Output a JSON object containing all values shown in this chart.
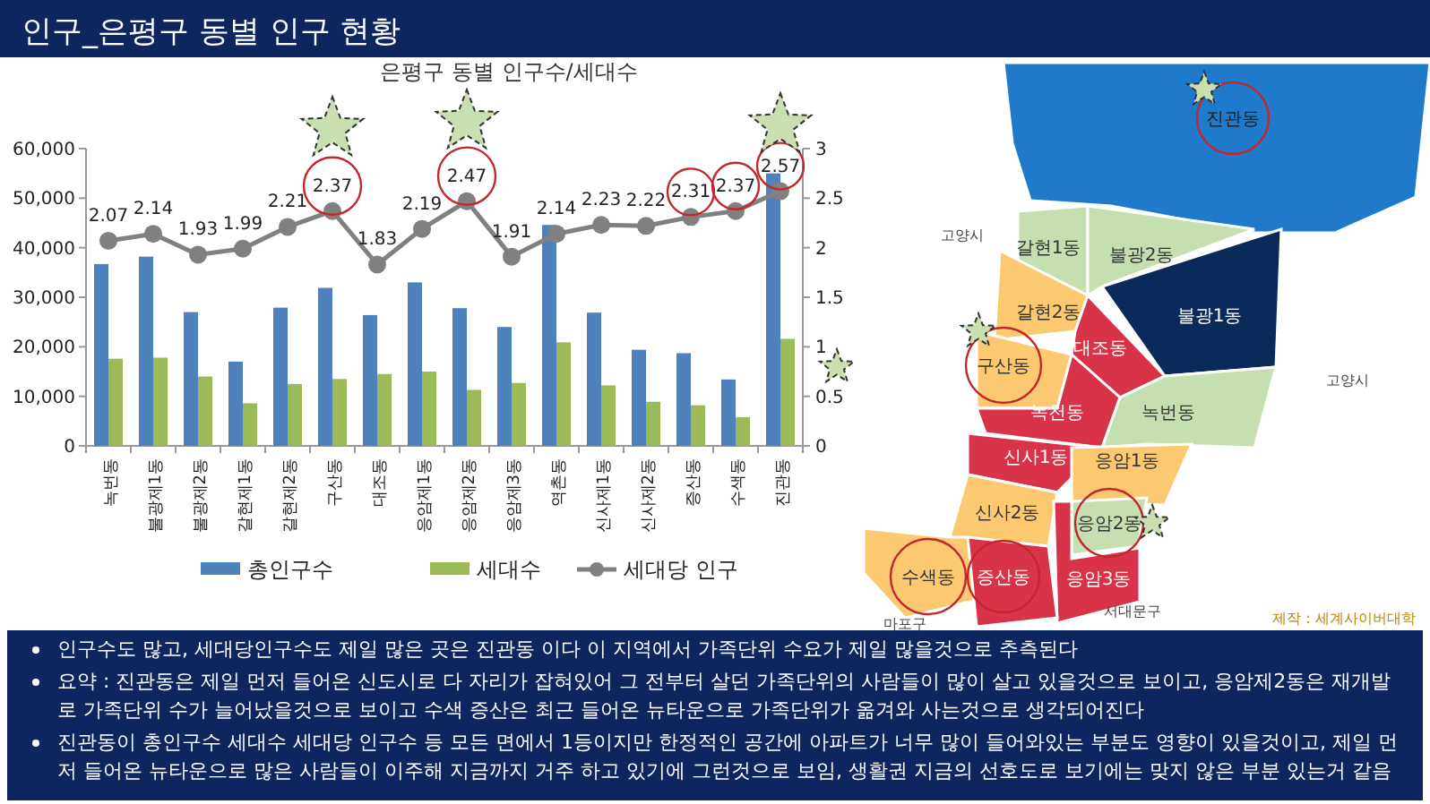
{
  "chart_data": [
    {
      "type": "bar",
      "title": "인구_은평구 동별 인구 현황",
      "subtitle": "은평구 동별 인구수/세대수",
      "categories": [
        "녹번동",
        "불광제1동",
        "불광제2동",
        "갈현제1동",
        "갈현제2동",
        "구산동",
        "대조동",
        "응암제1동",
        "응암제2동",
        "응암제3동",
        "역촌동",
        "신사제1동",
        "신사제2동",
        "증산동",
        "수색동",
        "진관동"
      ],
      "series": [
        {
          "name": "총인구수",
          "type": "bar",
          "color": "#4f81bd",
          "values": [
            36700,
            38200,
            27000,
            17000,
            27900,
            31900,
            26400,
            33000,
            27800,
            24000,
            44600,
            26900,
            19400,
            18700,
            13400,
            55000
          ]
        },
        {
          "name": "세대수",
          "type": "bar",
          "color": "#9bbb59",
          "values": [
            17600,
            17800,
            14000,
            8600,
            12500,
            13500,
            14500,
            15000,
            11300,
            12700,
            20900,
            12200,
            8900,
            8200,
            5800,
            21600
          ]
        },
        {
          "name": "세대당 인구",
          "type": "line",
          "axis": "y2",
          "color": "#808080",
          "marker": "circle",
          "values": [
            2.07,
            2.14,
            1.93,
            1.99,
            2.21,
            2.37,
            1.83,
            2.19,
            2.47,
            1.91,
            2.14,
            2.23,
            2.22,
            2.31,
            2.37,
            2.57
          ],
          "value_labels": [
            "2.07",
            "2.14",
            "1.93",
            "1.99",
            "2.21",
            "2.37",
            "1.83",
            "2.19",
            "2.47",
            "1.91",
            "2.14",
            "2.23",
            "2.22",
            "2.31",
            "2.37",
            "2.57"
          ]
        }
      ],
      "ylim": [
        0,
        60000
      ],
      "yticks": [
        0,
        {
          "value": 10000,
          "label": "10,000"
        },
        {
          "value": 20000,
          "label": "20,000"
        },
        {
          "value": 30000,
          "label": "30,000"
        },
        {
          "value": 40000,
          "label": "40,000"
        },
        {
          "value": 50000,
          "label": "50,000"
        },
        {
          "value": 60000,
          "label": "60,000"
        }
      ],
      "y2lim": [
        0,
        3
      ],
      "y2ticks": [
        0,
        0.5,
        1,
        1.5,
        2,
        2.5,
        3
      ],
      "grid": false,
      "legend": "bottom",
      "annotations": [
        "인구수도 많고, 세대당인구수도 제일 많은 곳은 진관동 이다 이 지역에서 가족단위 수요가 제일 많을것으로 추측된다",
        "요약 : 진관동은 제일 먼저 들어온 신도시로 다 자리가 잡혀있어 그 전부터 살던 가족단위의 사람들이 많이 살고 있을것으로 보이고, 응암제2동은 재개발로 가족단위 수가 늘어났을것으로 보이고 수색 증산은 최근 들어온 뉴타운으로 가족단위가 옮겨와 사는것으로 생각되어진다",
        "진관동이 총인구수 세대수 세대당 인구수 등 모든 면에서 1등이지만 한정적인 공간에 아파트가 너무 많이 들어와있는 부분도 영향이 있을것이고, 제일 먼저 들어온 뉴타운으로 많은 사람들이 이주해 지금까지 거주 하고 있기에 그런것으로 보임, 생활권 지금의 선호도로 보기에는 맞지 않은 부분 있는거 같음"
      ]
    },
    {
      "type": "other",
      "annotations": [
        "진관동",
        "갈현1동",
        "불광2동",
        "불광1동",
        "갈현2동",
        "구산동",
        "대조동",
        "녹천동",
        "녹번동",
        "신사1동",
        "응암1동",
        "신사2동",
        "응암2동",
        "응암3동",
        "수색동",
        "증산동",
        "고양시",
        "고양시",
        "서대문구",
        "마포구",
        "제작 : 세계사이버대학"
      ]
    }
  ]
}
